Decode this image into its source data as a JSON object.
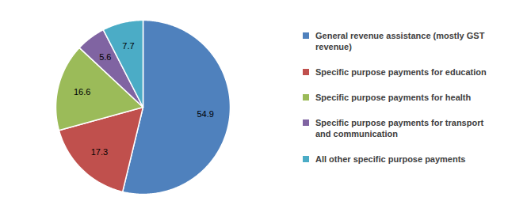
{
  "chart_data": {
    "type": "pie",
    "categories": [
      "General revenue assistance (mostly GST revenue)",
      "Specific purpose payments for education",
      "Specific purpose payments for health",
      "Specific purpose payments for transport and communication",
      "All other specific purpose payments"
    ],
    "values": [
      54.9,
      17.3,
      16.6,
      5.6,
      7.7
    ],
    "colors": [
      "#4f81bd",
      "#c0504d",
      "#9bbb59",
      "#8064a2",
      "#4bacc6"
    ],
    "data_labels": true,
    "legend": "right"
  }
}
